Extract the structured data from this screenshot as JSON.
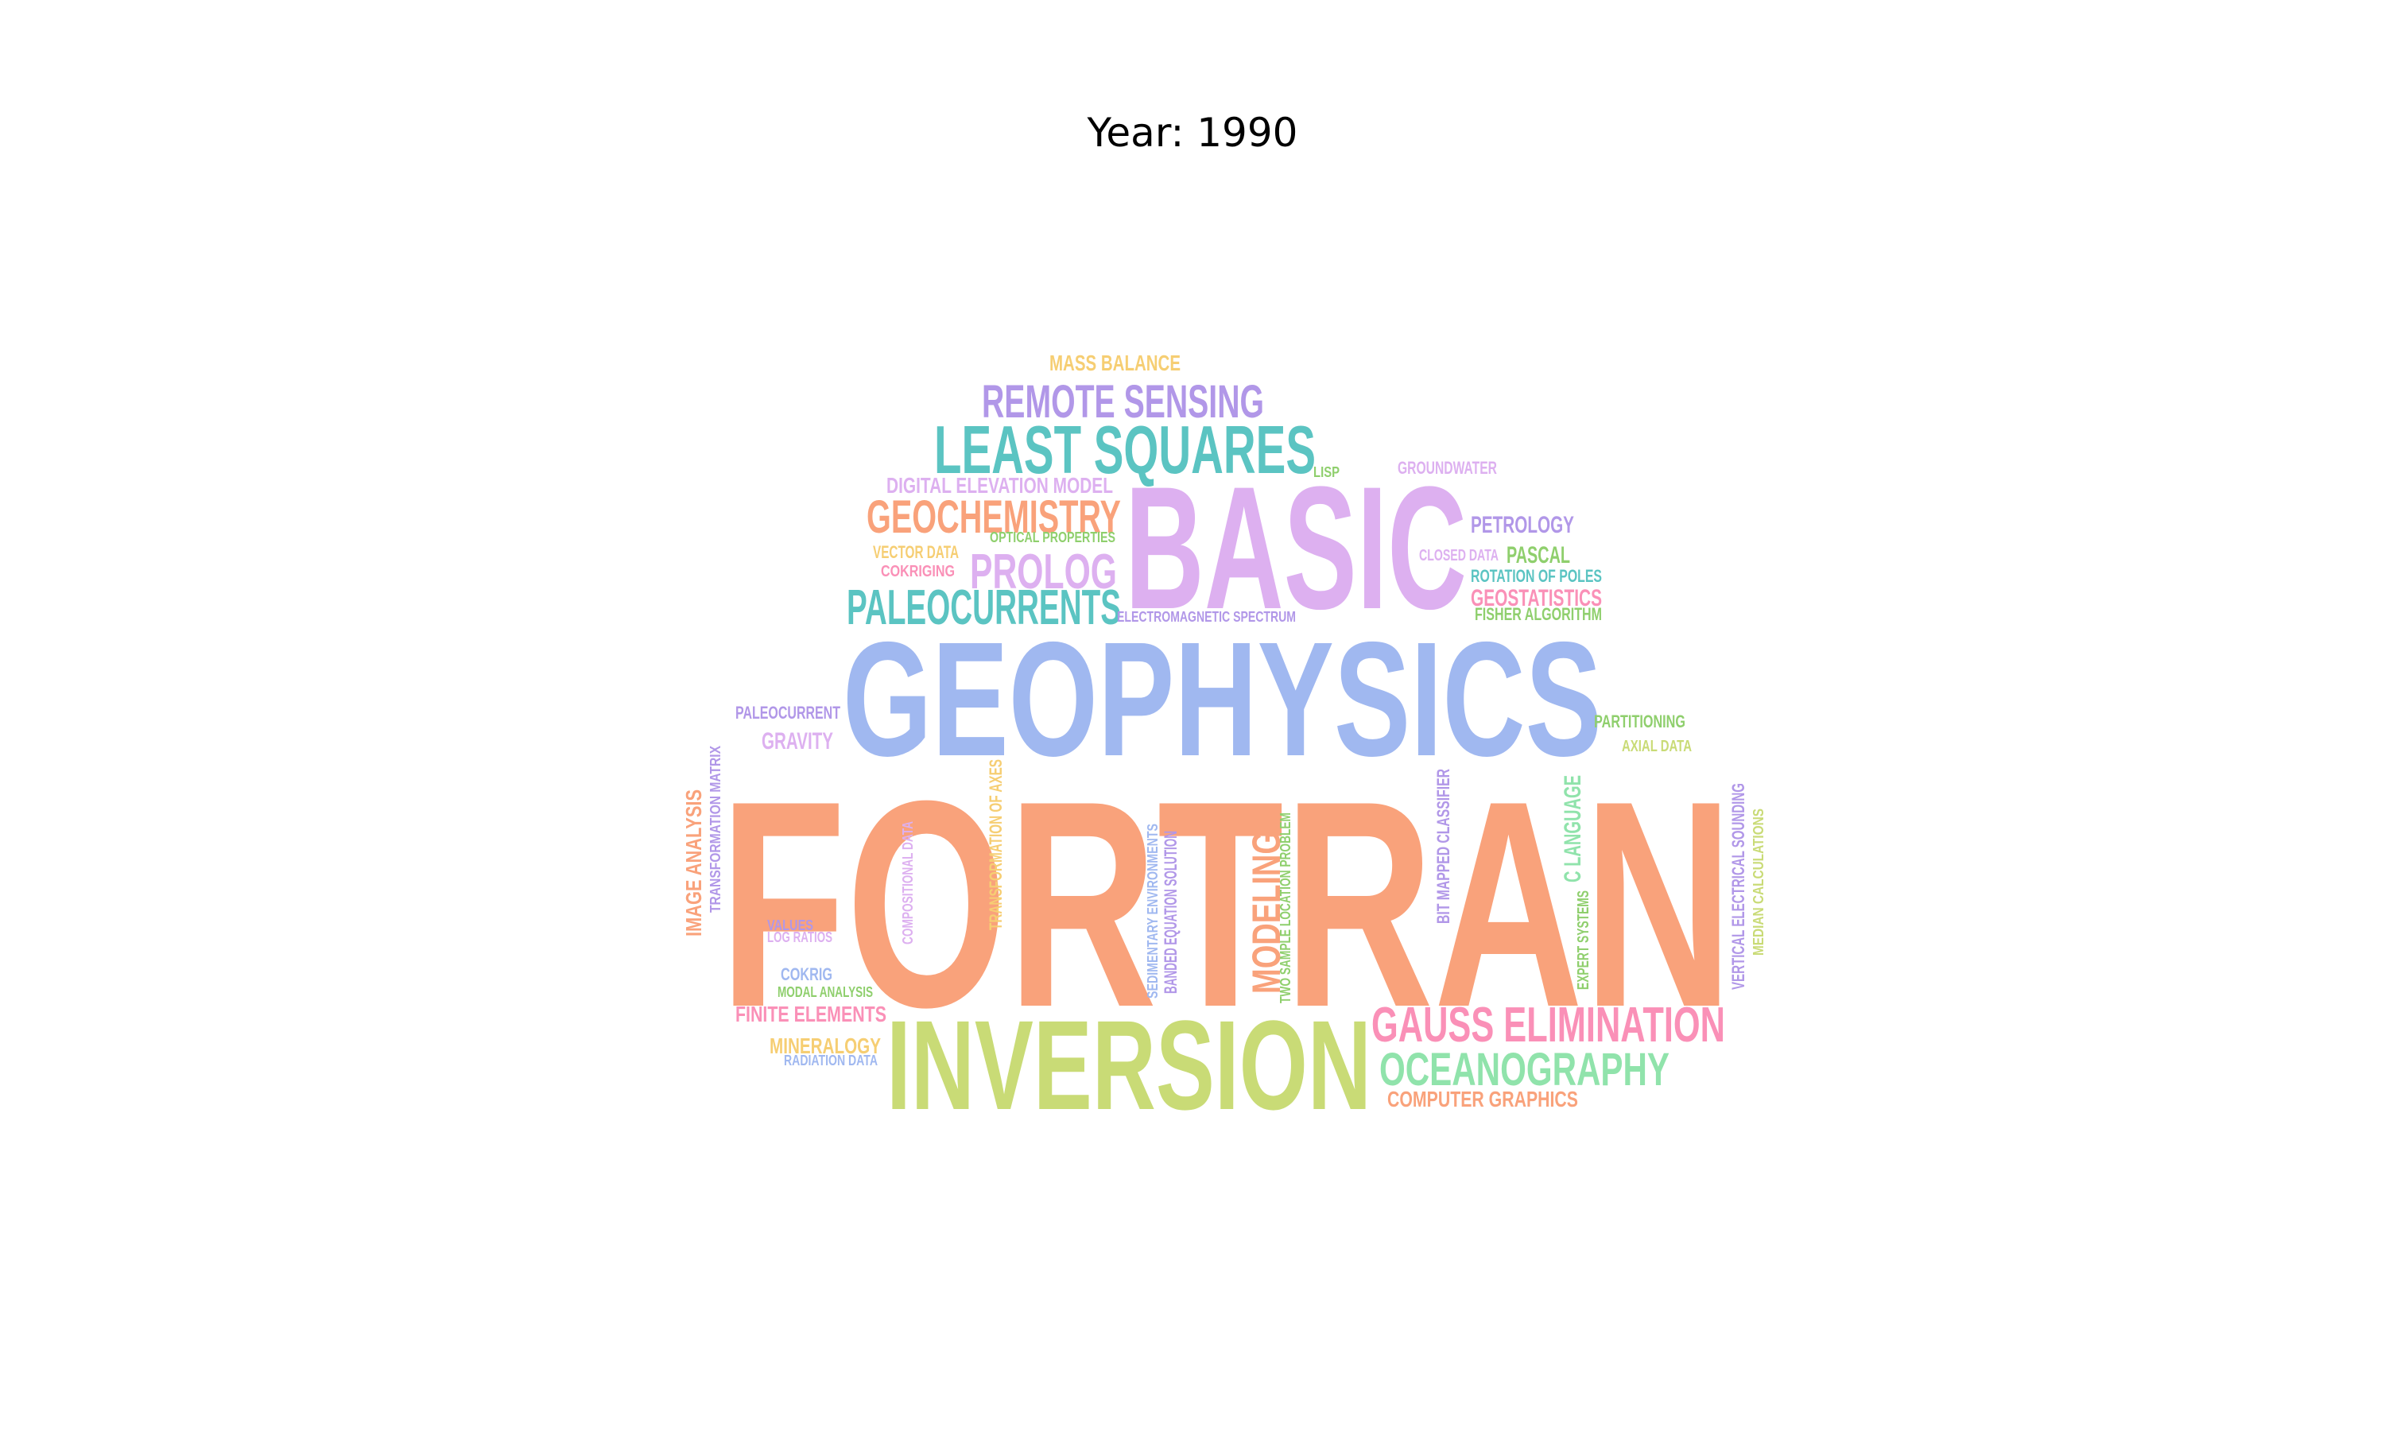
{
  "title": "Year: 1990",
  "palette": {
    "orange": "#F9A27B",
    "blue": "#A0B8F0",
    "lilac": "#DDB0F0",
    "teal": "#5BC4C2",
    "purple": "#B197E8",
    "yellow": "#F6CE73",
    "green": "#8FCF6D",
    "lime": "#C9DB76",
    "pink": "#FA90B7",
    "mint": "#90E3AB"
  },
  "words": [
    {
      "text": "FORTRAN",
      "color": "orange"
    },
    {
      "text": "GEOPHYSICS",
      "color": "blue"
    },
    {
      "text": "BASIC",
      "color": "lilac"
    },
    {
      "text": "INVERSION",
      "color": "lime"
    },
    {
      "text": "LEAST SQUARES",
      "color": "teal"
    },
    {
      "text": "REMOTE SENSING",
      "color": "purple"
    },
    {
      "text": "GEOCHEMISTRY",
      "color": "orange"
    },
    {
      "text": "PALEOCURRENTS",
      "color": "teal"
    },
    {
      "text": "PROLOG",
      "color": "lilac"
    },
    {
      "text": "GAUSS ELIMINATION",
      "color": "pink"
    },
    {
      "text": "OCEANOGRAPHY",
      "color": "mint"
    },
    {
      "text": "MODELING",
      "color": "orange"
    },
    {
      "text": "MASS BALANCE",
      "color": "yellow"
    },
    {
      "text": "DIGITAL ELEVATION MODEL",
      "color": "lilac"
    },
    {
      "text": "LISP",
      "color": "green"
    },
    {
      "text": "GROUNDWATER",
      "color": "lilac"
    },
    {
      "text": "PETROLOGY",
      "color": "purple"
    },
    {
      "text": "CLOSED DATA",
      "color": "lilac"
    },
    {
      "text": "PASCAL",
      "color": "green"
    },
    {
      "text": "ROTATION OF POLES",
      "color": "teal"
    },
    {
      "text": "GEOSTATISTICS",
      "color": "pink"
    },
    {
      "text": "FISHER ALGORITHM",
      "color": "green"
    },
    {
      "text": "VECTOR DATA",
      "color": "yellow"
    },
    {
      "text": "COKRIGING",
      "color": "pink"
    },
    {
      "text": "OPTICAL PROPERTIES",
      "color": "green"
    },
    {
      "text": "ELECTROMAGNETIC SPECTRUM",
      "color": "purple"
    },
    {
      "text": "PALEOCURRENT",
      "color": "purple"
    },
    {
      "text": "GRAVITY",
      "color": "lilac"
    },
    {
      "text": "PARTITIONING",
      "color": "green"
    },
    {
      "text": "AXIAL DATA",
      "color": "lime"
    },
    {
      "text": "COMPUTER GRAPHICS",
      "color": "orange"
    },
    {
      "text": "FINITE ELEMENTS",
      "color": "pink"
    },
    {
      "text": "MINERALOGY",
      "color": "yellow"
    },
    {
      "text": "RADIATION DATA",
      "color": "blue"
    },
    {
      "text": "COKRIG",
      "color": "blue"
    },
    {
      "text": "MODAL ANALYSIS",
      "color": "green"
    },
    {
      "text": "VALUES",
      "color": "purple"
    },
    {
      "text": "LOG RATIOS",
      "color": "lilac"
    },
    {
      "text": "IMAGE ANALYSIS",
      "color": "orange"
    },
    {
      "text": "TRANSFORMATION MATRIX",
      "color": "purple"
    },
    {
      "text": "TRANSFORMATION OF AXES",
      "color": "yellow"
    },
    {
      "text": "COMPOSITIONAL DATA",
      "color": "lilac"
    },
    {
      "text": "SEDIMENTARY ENVIRONMENTS",
      "color": "blue"
    },
    {
      "text": "BANDED EQUATION SOLUTION",
      "color": "purple"
    },
    {
      "text": "TWO SAMPLE LOCATION PROBLEM",
      "color": "green"
    },
    {
      "text": "BIT MAPPED CLASSIFIER",
      "color": "purple"
    },
    {
      "text": "C LANGUAGE",
      "color": "mint"
    },
    {
      "text": "EXPERT SYSTEMS",
      "color": "green"
    },
    {
      "text": "VERTICAL ELECTRICAL SOUNDING",
      "color": "purple"
    },
    {
      "text": "MEDIAN CALCULATIONS",
      "color": "lime"
    }
  ]
}
